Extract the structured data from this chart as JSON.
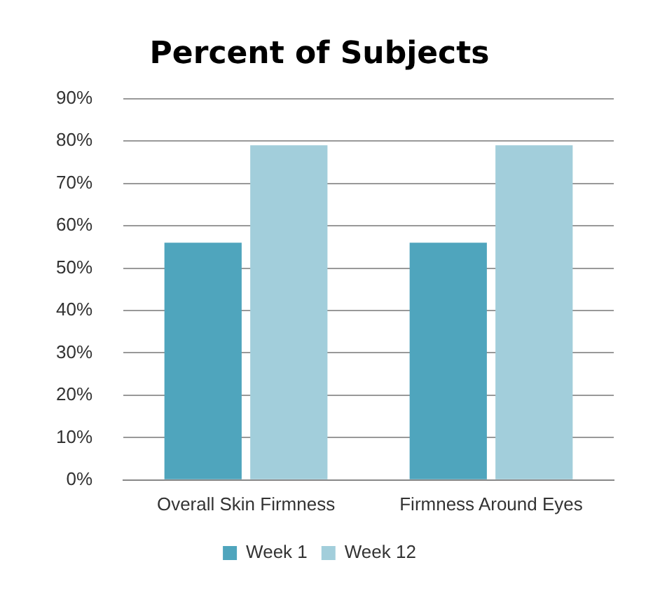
{
  "chart_data": {
    "type": "bar",
    "title": "Percent of Subjects",
    "categories": [
      "Overall Skin Firmness",
      "Firmness Around Eyes"
    ],
    "series": [
      {
        "name": "Week 1",
        "color": "#4fa5bd",
        "values": [
          56,
          56
        ]
      },
      {
        "name": "Week 12",
        "color": "#a2cedb",
        "values": [
          79,
          79
        ]
      }
    ],
    "ylim": [
      0,
      90
    ],
    "yticks": [
      {
        "value": 0,
        "label": "0%"
      },
      {
        "value": 10,
        "label": "10%"
      },
      {
        "value": 20,
        "label": "20%"
      },
      {
        "value": 30,
        "label": "30%"
      },
      {
        "value": 40,
        "label": "40%"
      },
      {
        "value": 50,
        "label": "50%"
      },
      {
        "value": 60,
        "label": "60%"
      },
      {
        "value": 70,
        "label": "70%"
      },
      {
        "value": 80,
        "label": "80%"
      },
      {
        "value": 90,
        "label": "90%"
      }
    ],
    "grid": "y",
    "legend": "bottom"
  }
}
